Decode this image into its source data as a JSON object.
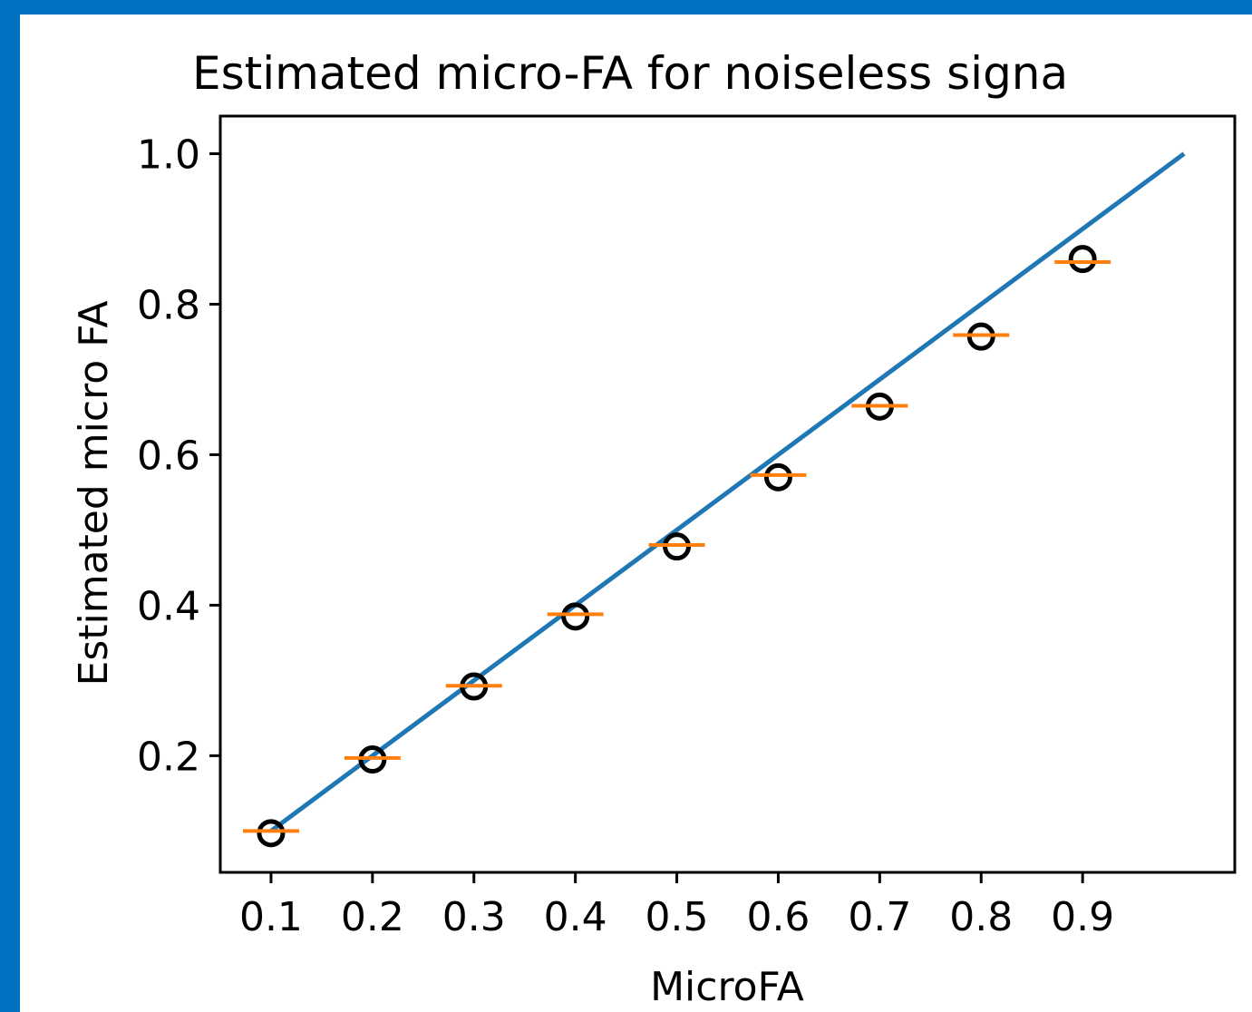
{
  "frame": {
    "border_color": "#0070c0",
    "background": "#ffffff"
  },
  "chart_data": {
    "type": "scatter",
    "title": "Estimated micro-FA for noiseless signa",
    "xlabel": "MicroFA",
    "ylabel": "Estimated micro FA",
    "xlim": [
      0.05,
      1.05
    ],
    "ylim": [
      0.045,
      1.05
    ],
    "xticks": [
      "0.1",
      "0.2",
      "0.3",
      "0.4",
      "0.5",
      "0.6",
      "0.7",
      "0.8",
      "0.9"
    ],
    "yticks": [
      "0.2",
      "0.4",
      "0.6",
      "0.8",
      "1.0"
    ],
    "grid": false,
    "reference_line": {
      "x": [
        0.1,
        1.0
      ],
      "y": [
        0.1,
        1.0
      ],
      "color": "#1f77b4"
    },
    "estimates": {
      "x": [
        0.1,
        0.2,
        0.3,
        0.4,
        0.5,
        0.6,
        0.7,
        0.8,
        0.9
      ],
      "y": [
        0.097,
        0.195,
        0.292,
        0.385,
        0.478,
        0.57,
        0.664,
        0.757,
        0.86
      ],
      "marker": "open-circle",
      "color": "#000000"
    },
    "medians": {
      "x": [
        0.1,
        0.2,
        0.3,
        0.4,
        0.5,
        0.6,
        0.7,
        0.8,
        0.9
      ],
      "y": [
        0.1,
        0.197,
        0.293,
        0.388,
        0.48,
        0.573,
        0.665,
        0.759,
        0.856
      ],
      "marker": "horizontal-dash",
      "color": "#ff7f0e"
    }
  }
}
